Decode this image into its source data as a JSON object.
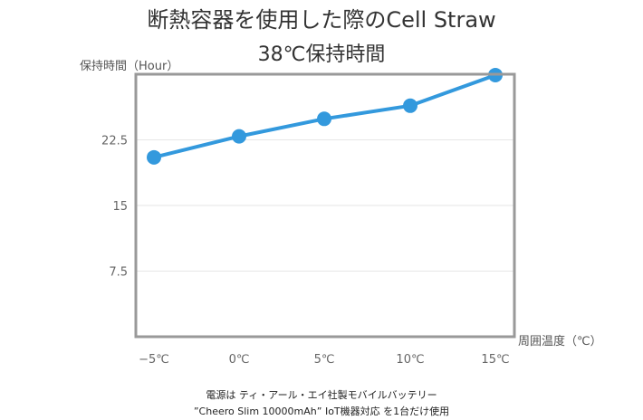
{
  "chart_data": {
    "type": "line",
    "title": "断熱容器を使用した際のCell Straw",
    "subtitle": "38℃保持時間",
    "ylabel": "保持時間（Hour）",
    "xlabel": "周囲温度（℃）",
    "categories": [
      "−5℃",
      "0℃",
      "5℃",
      "10℃",
      "15℃"
    ],
    "series": [
      {
        "values": [
          20.5,
          22.9,
          24.9,
          26.4,
          29.9
        ]
      }
    ],
    "ylim": [
      0,
      30
    ],
    "yticks": [
      7.5,
      15,
      22.5
    ],
    "ytick_labels": [
      "7.5",
      "15",
      "22.5"
    ],
    "grid": true,
    "colors": {
      "line": "#3399dd",
      "frame": "#999999",
      "grid": "#e6e6e6"
    }
  },
  "footnote": {
    "line1": "電源は ティ・アール・エイ社製モバイルバッテリー",
    "line2": "”Cheero Slim 10000mAh” IoT機器対応 を1台だけ使用"
  }
}
